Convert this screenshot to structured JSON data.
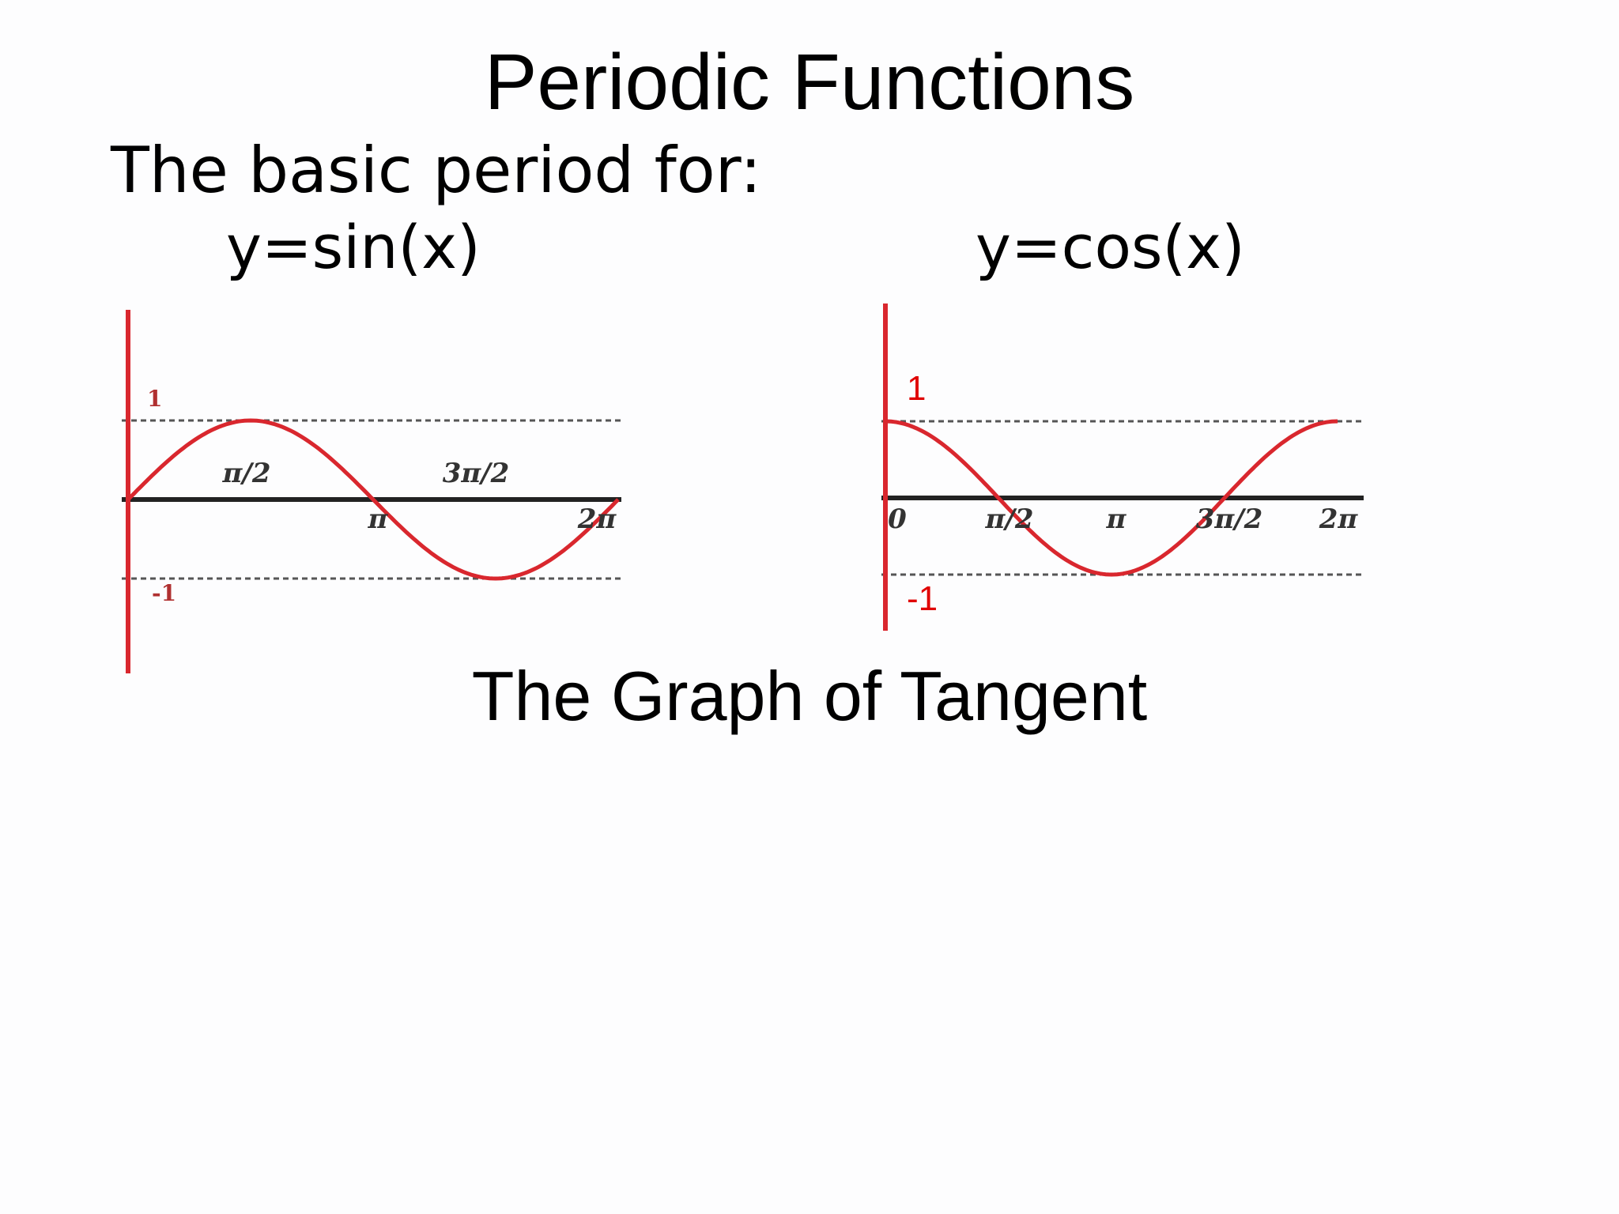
{
  "slide": {
    "title": "Periodic Functions",
    "subtitle": "The basic period for:",
    "section_title": "The Graph of Tangent"
  },
  "colors": {
    "curve": "#d9272e",
    "axis_y": "#d9272e",
    "axis_x": "#222222",
    "dashed": "#555555",
    "red_label": "#e00000"
  },
  "chart_data": [
    {
      "type": "line",
      "title": "y=sin(x)",
      "function": "sin",
      "xlim": [
        0,
        6.283
      ],
      "ylim": [
        -1,
        1
      ],
      "dashed_reference_lines": [
        1,
        -1
      ],
      "x_tick_labels": [
        "π/2",
        "π",
        "3π/2",
        "2π"
      ],
      "y_tick_labels": [
        "1",
        "-1"
      ],
      "series": [
        {
          "x": [
            0,
            0.785,
            1.571,
            2.356,
            3.142,
            3.927,
            4.712,
            5.498,
            6.283
          ],
          "y": [
            0,
            0.71,
            1,
            0.71,
            0,
            -0.71,
            -1,
            -0.71,
            0
          ]
        }
      ]
    },
    {
      "type": "line",
      "title": "y=cos(x)",
      "function": "cos",
      "xlim": [
        0,
        6.283
      ],
      "ylim": [
        -1,
        1
      ],
      "dashed_reference_lines": [
        1,
        -1
      ],
      "x_tick_labels": [
        "0",
        "π/2",
        "π",
        "3π/2",
        "2π"
      ],
      "y_tick_labels": [
        "1",
        "-1"
      ],
      "series": [
        {
          "x": [
            0,
            0.785,
            1.571,
            2.356,
            3.142,
            3.927,
            4.712,
            5.498,
            6.283
          ],
          "y": [
            1,
            0.71,
            0,
            -0.71,
            -1,
            -0.71,
            0,
            0.71,
            1
          ]
        }
      ]
    }
  ]
}
